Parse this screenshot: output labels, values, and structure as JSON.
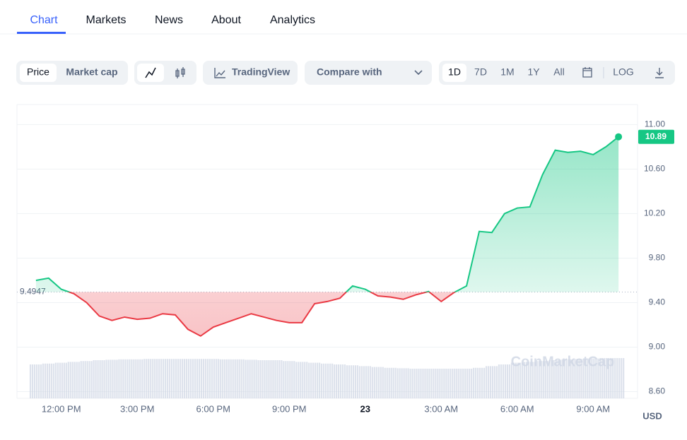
{
  "tabs": [
    "Chart",
    "Markets",
    "News",
    "About",
    "Analytics"
  ],
  "toolbar": {
    "type_toggle": [
      "Price",
      "Market cap"
    ],
    "trading_view": "TradingView",
    "compare": "Compare with",
    "ranges": [
      "1D",
      "7D",
      "1M",
      "1Y",
      "All"
    ],
    "log": "LOG"
  },
  "chart_data": {
    "type": "line",
    "categories": [
      null,
      null,
      "12:00 PM",
      null,
      null,
      null,
      null,
      null,
      "3:00 PM",
      null,
      null,
      null,
      null,
      null,
      "6:00 PM",
      null,
      null,
      null,
      null,
      null,
      "9:00 PM",
      null,
      null,
      null,
      null,
      null,
      "23",
      null,
      null,
      null,
      null,
      null,
      "3:00 AM",
      null,
      null,
      null,
      null,
      null,
      "6:00 AM",
      null,
      null,
      null,
      null,
      null,
      "9:00 AM",
      null,
      null
    ],
    "values": [
      9.6,
      9.62,
      9.52,
      9.48,
      9.4,
      9.28,
      9.24,
      9.27,
      9.25,
      9.26,
      9.3,
      9.29,
      9.16,
      9.1,
      9.18,
      9.22,
      9.26,
      9.3,
      9.27,
      9.24,
      9.22,
      9.22,
      9.39,
      9.41,
      9.44,
      9.55,
      9.52,
      9.46,
      9.45,
      9.43,
      9.47,
      9.5,
      9.41,
      9.49,
      9.55,
      10.04,
      10.03,
      10.2,
      10.25,
      10.26,
      10.55,
      10.77,
      10.75,
      10.76,
      10.73,
      10.8,
      10.89
    ],
    "baseline": 9.4947,
    "up_color": "#16c784",
    "down_color": "#ea3943",
    "volume": [
      80,
      82,
      84,
      86,
      88,
      90,
      91,
      92,
      92,
      93,
      93,
      93,
      93,
      93,
      93,
      92,
      92,
      91,
      90,
      90,
      88,
      86,
      84,
      82,
      80,
      78,
      76,
      74,
      72,
      71,
      70,
      70,
      70,
      70,
      70,
      72,
      76,
      80,
      84,
      86,
      88,
      90,
      92,
      93,
      94,
      95,
      95
    ],
    "volume_ylim": [
      0,
      100
    ],
    "ylim": [
      8.54,
      11.18
    ],
    "yticks": [
      {
        "value": 8.6,
        "label": "8.60"
      },
      {
        "value": 9.0,
        "label": "9.00"
      },
      {
        "value": 9.4,
        "label": "9.40"
      },
      {
        "value": 9.8,
        "label": "9.80"
      },
      {
        "value": 10.2,
        "label": "10.20"
      },
      {
        "value": 10.6,
        "label": "10.60"
      },
      {
        "value": 11.0,
        "label": "11.00"
      }
    ],
    "grid": true,
    "unit": "USD",
    "watermark": "CoinMarketCap"
  }
}
